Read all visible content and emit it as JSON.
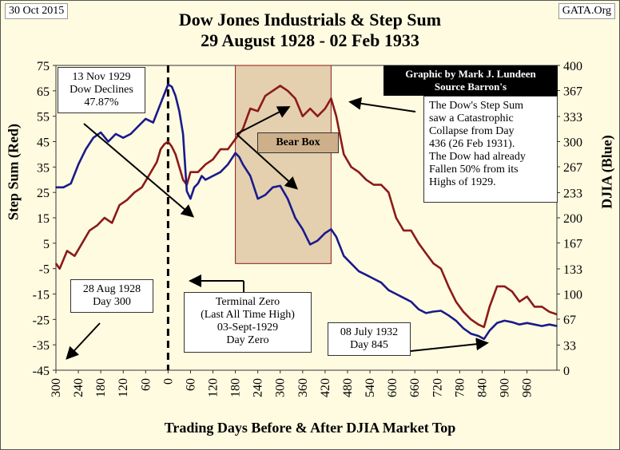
{
  "header": {
    "date": "30 Oct 2015",
    "source": "GATA.Org",
    "title_line1": "Dow Jones Industrials & Step Sum",
    "title_line2": "29 August 1928 - 02 Feb 1933"
  },
  "axes": {
    "xlabel": "Trading Days Before & After DJIA Market Top",
    "ylabel_left": "Step Sum (Red)",
    "ylabel_right": "DJIA (Blue)"
  },
  "colors": {
    "plot_bg": "#fffbe0",
    "dow": "#1a1a8c",
    "step_sum": "#8b1a1a",
    "bear_box": "#d2b48c",
    "credit_bg": "#000000"
  },
  "annotations": {
    "credit": "Graphic by Mark J. Lundeen\nSource Barron's",
    "nov1929": "13 Nov 1929\nDow Declines\n47.87%",
    "catastrophic": "The Dow's Step Sum\nsaw a Catastrophic\nCollapse from Day\n436 (26 Feb 1931).\nThe Dow had already\nFallen 50% from its\nHighs of 1929.",
    "bear_box": "Bear Box",
    "aug1928": "28 Aug 1928\nDay 300",
    "terminal_zero": "Terminal Zero\n(Last All Time High)\n03-Sept-1929\nDay Zero",
    "july1932": "08 July 1932\nDay 845"
  },
  "chart_data": {
    "type": "line",
    "title": "Dow Jones Industrials & Step Sum\n29 August 1928 - 02 Feb 1933",
    "xlabel": "Trading Days Before & After DJIA Market Top",
    "ylabel": "Step Sum (Red)",
    "y2label": "DJIA (Blue)",
    "xlim": [
      -300,
      1040
    ],
    "ylim": [
      -45,
      75
    ],
    "y2lim": [
      0,
      400
    ],
    "x_ticks": [
      -300,
      -240,
      -180,
      -120,
      -60,
      0,
      60,
      120,
      180,
      240,
      300,
      360,
      420,
      480,
      540,
      600,
      660,
      720,
      780,
      840,
      900,
      960
    ],
    "x_tick_labels": [
      "300",
      "240",
      "180",
      "120",
      "60",
      "0",
      "60",
      "120",
      "180",
      "240",
      "300",
      "360",
      "420",
      "480",
      "540",
      "600",
      "660",
      "720",
      "780",
      "840",
      "900",
      "960"
    ],
    "y_ticks": [
      75,
      65,
      55,
      45,
      35,
      25,
      15,
      5,
      -5,
      -15,
      -25,
      -35,
      -45
    ],
    "y2_ticks": [
      400,
      367,
      333,
      300,
      267,
      233,
      200,
      167,
      133,
      100,
      67,
      33,
      0
    ],
    "grid": false,
    "bear_box_x": [
      180,
      436
    ],
    "bear_box_y": [
      -3,
      75
    ],
    "terminal_zero_x": 0,
    "series": [
      {
        "name": "Step Sum",
        "axis": "left",
        "points": [
          [
            -300,
            -3
          ],
          [
            -290,
            -5
          ],
          [
            -270,
            2
          ],
          [
            -250,
            0
          ],
          [
            -230,
            5
          ],
          [
            -210,
            10
          ],
          [
            -190,
            12
          ],
          [
            -170,
            15
          ],
          [
            -150,
            13
          ],
          [
            -130,
            20
          ],
          [
            -110,
            22
          ],
          [
            -90,
            25
          ],
          [
            -70,
            27
          ],
          [
            -50,
            32
          ],
          [
            -30,
            37
          ],
          [
            -20,
            42
          ],
          [
            -10,
            44
          ],
          [
            0,
            45
          ],
          [
            10,
            43
          ],
          [
            20,
            40
          ],
          [
            30,
            35
          ],
          [
            40,
            30
          ],
          [
            50,
            28
          ],
          [
            60,
            33
          ],
          [
            80,
            33
          ],
          [
            100,
            36
          ],
          [
            120,
            38
          ],
          [
            140,
            42
          ],
          [
            160,
            42
          ],
          [
            180,
            46
          ],
          [
            200,
            50
          ],
          [
            220,
            58
          ],
          [
            240,
            57
          ],
          [
            260,
            63
          ],
          [
            280,
            65
          ],
          [
            300,
            67
          ],
          [
            320,
            65
          ],
          [
            340,
            62
          ],
          [
            360,
            55
          ],
          [
            380,
            58
          ],
          [
            400,
            55
          ],
          [
            420,
            58
          ],
          [
            436,
            62
          ],
          [
            450,
            55
          ],
          [
            470,
            40
          ],
          [
            490,
            35
          ],
          [
            510,
            33
          ],
          [
            530,
            30
          ],
          [
            550,
            28
          ],
          [
            570,
            28
          ],
          [
            590,
            25
          ],
          [
            610,
            15
          ],
          [
            630,
            10
          ],
          [
            650,
            10
          ],
          [
            670,
            5
          ],
          [
            690,
            1
          ],
          [
            710,
            -3
          ],
          [
            730,
            -5
          ],
          [
            750,
            -12
          ],
          [
            770,
            -18
          ],
          [
            790,
            -22
          ],
          [
            810,
            -25
          ],
          [
            830,
            -27
          ],
          [
            845,
            -28
          ],
          [
            860,
            -20
          ],
          [
            880,
            -12
          ],
          [
            900,
            -12
          ],
          [
            920,
            -14
          ],
          [
            940,
            -18
          ],
          [
            960,
            -16
          ],
          [
            980,
            -20
          ],
          [
            1000,
            -20
          ],
          [
            1020,
            -22
          ],
          [
            1040,
            -23
          ]
        ]
      },
      {
        "name": "DJIA",
        "axis": "right",
        "points": [
          [
            -300,
            240
          ],
          [
            -280,
            240
          ],
          [
            -260,
            245
          ],
          [
            -240,
            270
          ],
          [
            -220,
            290
          ],
          [
            -200,
            305
          ],
          [
            -180,
            312
          ],
          [
            -160,
            300
          ],
          [
            -140,
            310
          ],
          [
            -120,
            305
          ],
          [
            -100,
            310
          ],
          [
            -80,
            320
          ],
          [
            -60,
            330
          ],
          [
            -40,
            325
          ],
          [
            -20,
            350
          ],
          [
            0,
            375
          ],
          [
            10,
            372
          ],
          [
            20,
            360
          ],
          [
            30,
            340
          ],
          [
            40,
            310
          ],
          [
            50,
            235
          ],
          [
            60,
            225
          ],
          [
            70,
            240
          ],
          [
            80,
            245
          ],
          [
            90,
            255
          ],
          [
            100,
            250
          ],
          [
            120,
            255
          ],
          [
            140,
            260
          ],
          [
            160,
            270
          ],
          [
            180,
            285
          ],
          [
            190,
            280
          ],
          [
            200,
            270
          ],
          [
            220,
            255
          ],
          [
            240,
            225
          ],
          [
            260,
            230
          ],
          [
            280,
            240
          ],
          [
            300,
            242
          ],
          [
            320,
            225
          ],
          [
            340,
            200
          ],
          [
            360,
            185
          ],
          [
            380,
            165
          ],
          [
            400,
            170
          ],
          [
            420,
            180
          ],
          [
            436,
            185
          ],
          [
            450,
            175
          ],
          [
            470,
            150
          ],
          [
            490,
            140
          ],
          [
            510,
            130
          ],
          [
            530,
            125
          ],
          [
            550,
            120
          ],
          [
            570,
            115
          ],
          [
            590,
            105
          ],
          [
            610,
            100
          ],
          [
            630,
            95
          ],
          [
            650,
            90
          ],
          [
            670,
            80
          ],
          [
            690,
            75
          ],
          [
            710,
            77
          ],
          [
            730,
            78
          ],
          [
            750,
            72
          ],
          [
            770,
            65
          ],
          [
            790,
            55
          ],
          [
            810,
            48
          ],
          [
            830,
            45
          ],
          [
            845,
            41
          ],
          [
            860,
            52
          ],
          [
            880,
            62
          ],
          [
            900,
            65
          ],
          [
            920,
            63
          ],
          [
            940,
            60
          ],
          [
            960,
            62
          ],
          [
            980,
            60
          ],
          [
            1000,
            58
          ],
          [
            1020,
            60
          ],
          [
            1040,
            58
          ]
        ]
      }
    ]
  }
}
